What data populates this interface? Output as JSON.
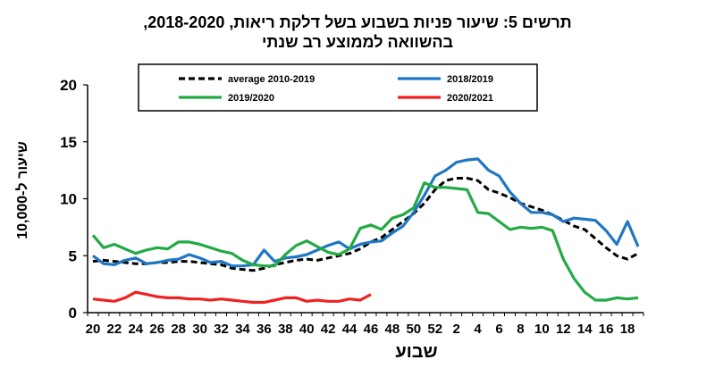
{
  "chart_data": {
    "type": "line",
    "title_line1": "תרשים 5: שיעור פניות  בשבוע בשל דלקת ריאות, 2018-2020,",
    "title_line2": "בהשוואה לממוצע רב שנתי",
    "xlabel": "שבוע",
    "ylabel": "שיעור ל-10,000",
    "ylim": [
      0,
      20
    ],
    "yticks": [
      "0",
      "5",
      "10",
      "15",
      "20"
    ],
    "grid": false,
    "legend": "top-inside-box",
    "x_categories": [
      "20",
      "21",
      "22",
      "23",
      "24",
      "25",
      "26",
      "27",
      "28",
      "29",
      "30",
      "31",
      "32",
      "33",
      "34",
      "35",
      "36",
      "37",
      "38",
      "39",
      "40",
      "41",
      "42",
      "43",
      "44",
      "45",
      "46",
      "47",
      "48",
      "49",
      "50",
      "51",
      "52",
      "1",
      "2",
      "3",
      "4",
      "5",
      "6",
      "7",
      "8",
      "9",
      "10",
      "11",
      "12",
      "13",
      "14",
      "15",
      "16",
      "17",
      "18",
      "19"
    ],
    "xtick_labels": [
      "20",
      "22",
      "24",
      "26",
      "28",
      "30",
      "32",
      "34",
      "36",
      "38",
      "40",
      "42",
      "44",
      "46",
      "48",
      "50",
      "52",
      "2",
      "4",
      "6",
      "8",
      "10",
      "12",
      "14",
      "16",
      "18"
    ],
    "series": [
      {
        "name": "average 2010-2019",
        "color": "#000000",
        "dashed": true,
        "values": [
          4.5,
          4.6,
          4.5,
          4.4,
          4.3,
          4.3,
          4.4,
          4.4,
          4.5,
          4.5,
          4.4,
          4.3,
          4.2,
          3.9,
          3.8,
          3.7,
          3.9,
          4.2,
          4.4,
          4.6,
          4.7,
          4.6,
          4.8,
          5.0,
          5.2,
          5.6,
          6.2,
          6.6,
          7.3,
          8.0,
          8.7,
          9.6,
          10.8,
          11.6,
          11.8,
          11.8,
          11.6,
          10.8,
          10.5,
          10.1,
          9.6,
          9.3,
          9.0,
          8.6,
          8.1,
          7.6,
          7.3,
          6.5,
          5.7,
          5.0,
          4.7,
          5.2
        ]
      },
      {
        "name": "2018/2019",
        "color": "#1f77c4",
        "dashed": false,
        "values": [
          5.0,
          4.3,
          4.2,
          4.6,
          4.8,
          4.3,
          4.4,
          4.6,
          4.7,
          5.1,
          4.8,
          4.4,
          4.5,
          4.1,
          4.1,
          4.2,
          5.5,
          4.5,
          4.8,
          4.9,
          5.1,
          5.5,
          5.9,
          6.2,
          5.6,
          6.0,
          6.2,
          6.3,
          7.0,
          7.6,
          8.8,
          10.3,
          12.0,
          12.5,
          13.2,
          13.4,
          13.5,
          12.5,
          12.0,
          10.6,
          9.6,
          8.8,
          8.8,
          8.6,
          8.0,
          8.3,
          8.2,
          8.1,
          7.2,
          6.0,
          8.0,
          5.8
        ]
      },
      {
        "name": "2019/2020",
        "color": "#22aa44",
        "dashed": false,
        "values": [
          6.8,
          5.7,
          6.0,
          5.6,
          5.2,
          5.5,
          5.7,
          5.6,
          6.2,
          6.2,
          6.0,
          5.7,
          5.4,
          5.2,
          4.6,
          4.2,
          4.1,
          4.1,
          5.1,
          5.9,
          6.3,
          5.8,
          5.3,
          5.1,
          5.6,
          7.4,
          7.7,
          7.3,
          8.3,
          8.6,
          9.2,
          11.4,
          11.0,
          11.0,
          10.9,
          10.8,
          8.8,
          8.7,
          8.0,
          7.3,
          7.5,
          7.4,
          7.5,
          7.2,
          4.7,
          3.0,
          1.8,
          1.1,
          1.1,
          1.3,
          1.2,
          1.3
        ]
      },
      {
        "name": "2020/2021",
        "color": "#ee2222",
        "dashed": false,
        "values": [
          1.2,
          1.1,
          1.0,
          1.3,
          1.8,
          1.6,
          1.4,
          1.3,
          1.3,
          1.2,
          1.2,
          1.1,
          1.2,
          1.1,
          1.0,
          0.9,
          0.9,
          1.1,
          1.3,
          1.3,
          1.0,
          1.1,
          1.0,
          1.0,
          1.2,
          1.1,
          1.6,
          null,
          null,
          null,
          null,
          null,
          null,
          null,
          null,
          null,
          null,
          null,
          null,
          null,
          null,
          null,
          null,
          null,
          null,
          null,
          null,
          null,
          null,
          null,
          null,
          null
        ]
      }
    ]
  }
}
